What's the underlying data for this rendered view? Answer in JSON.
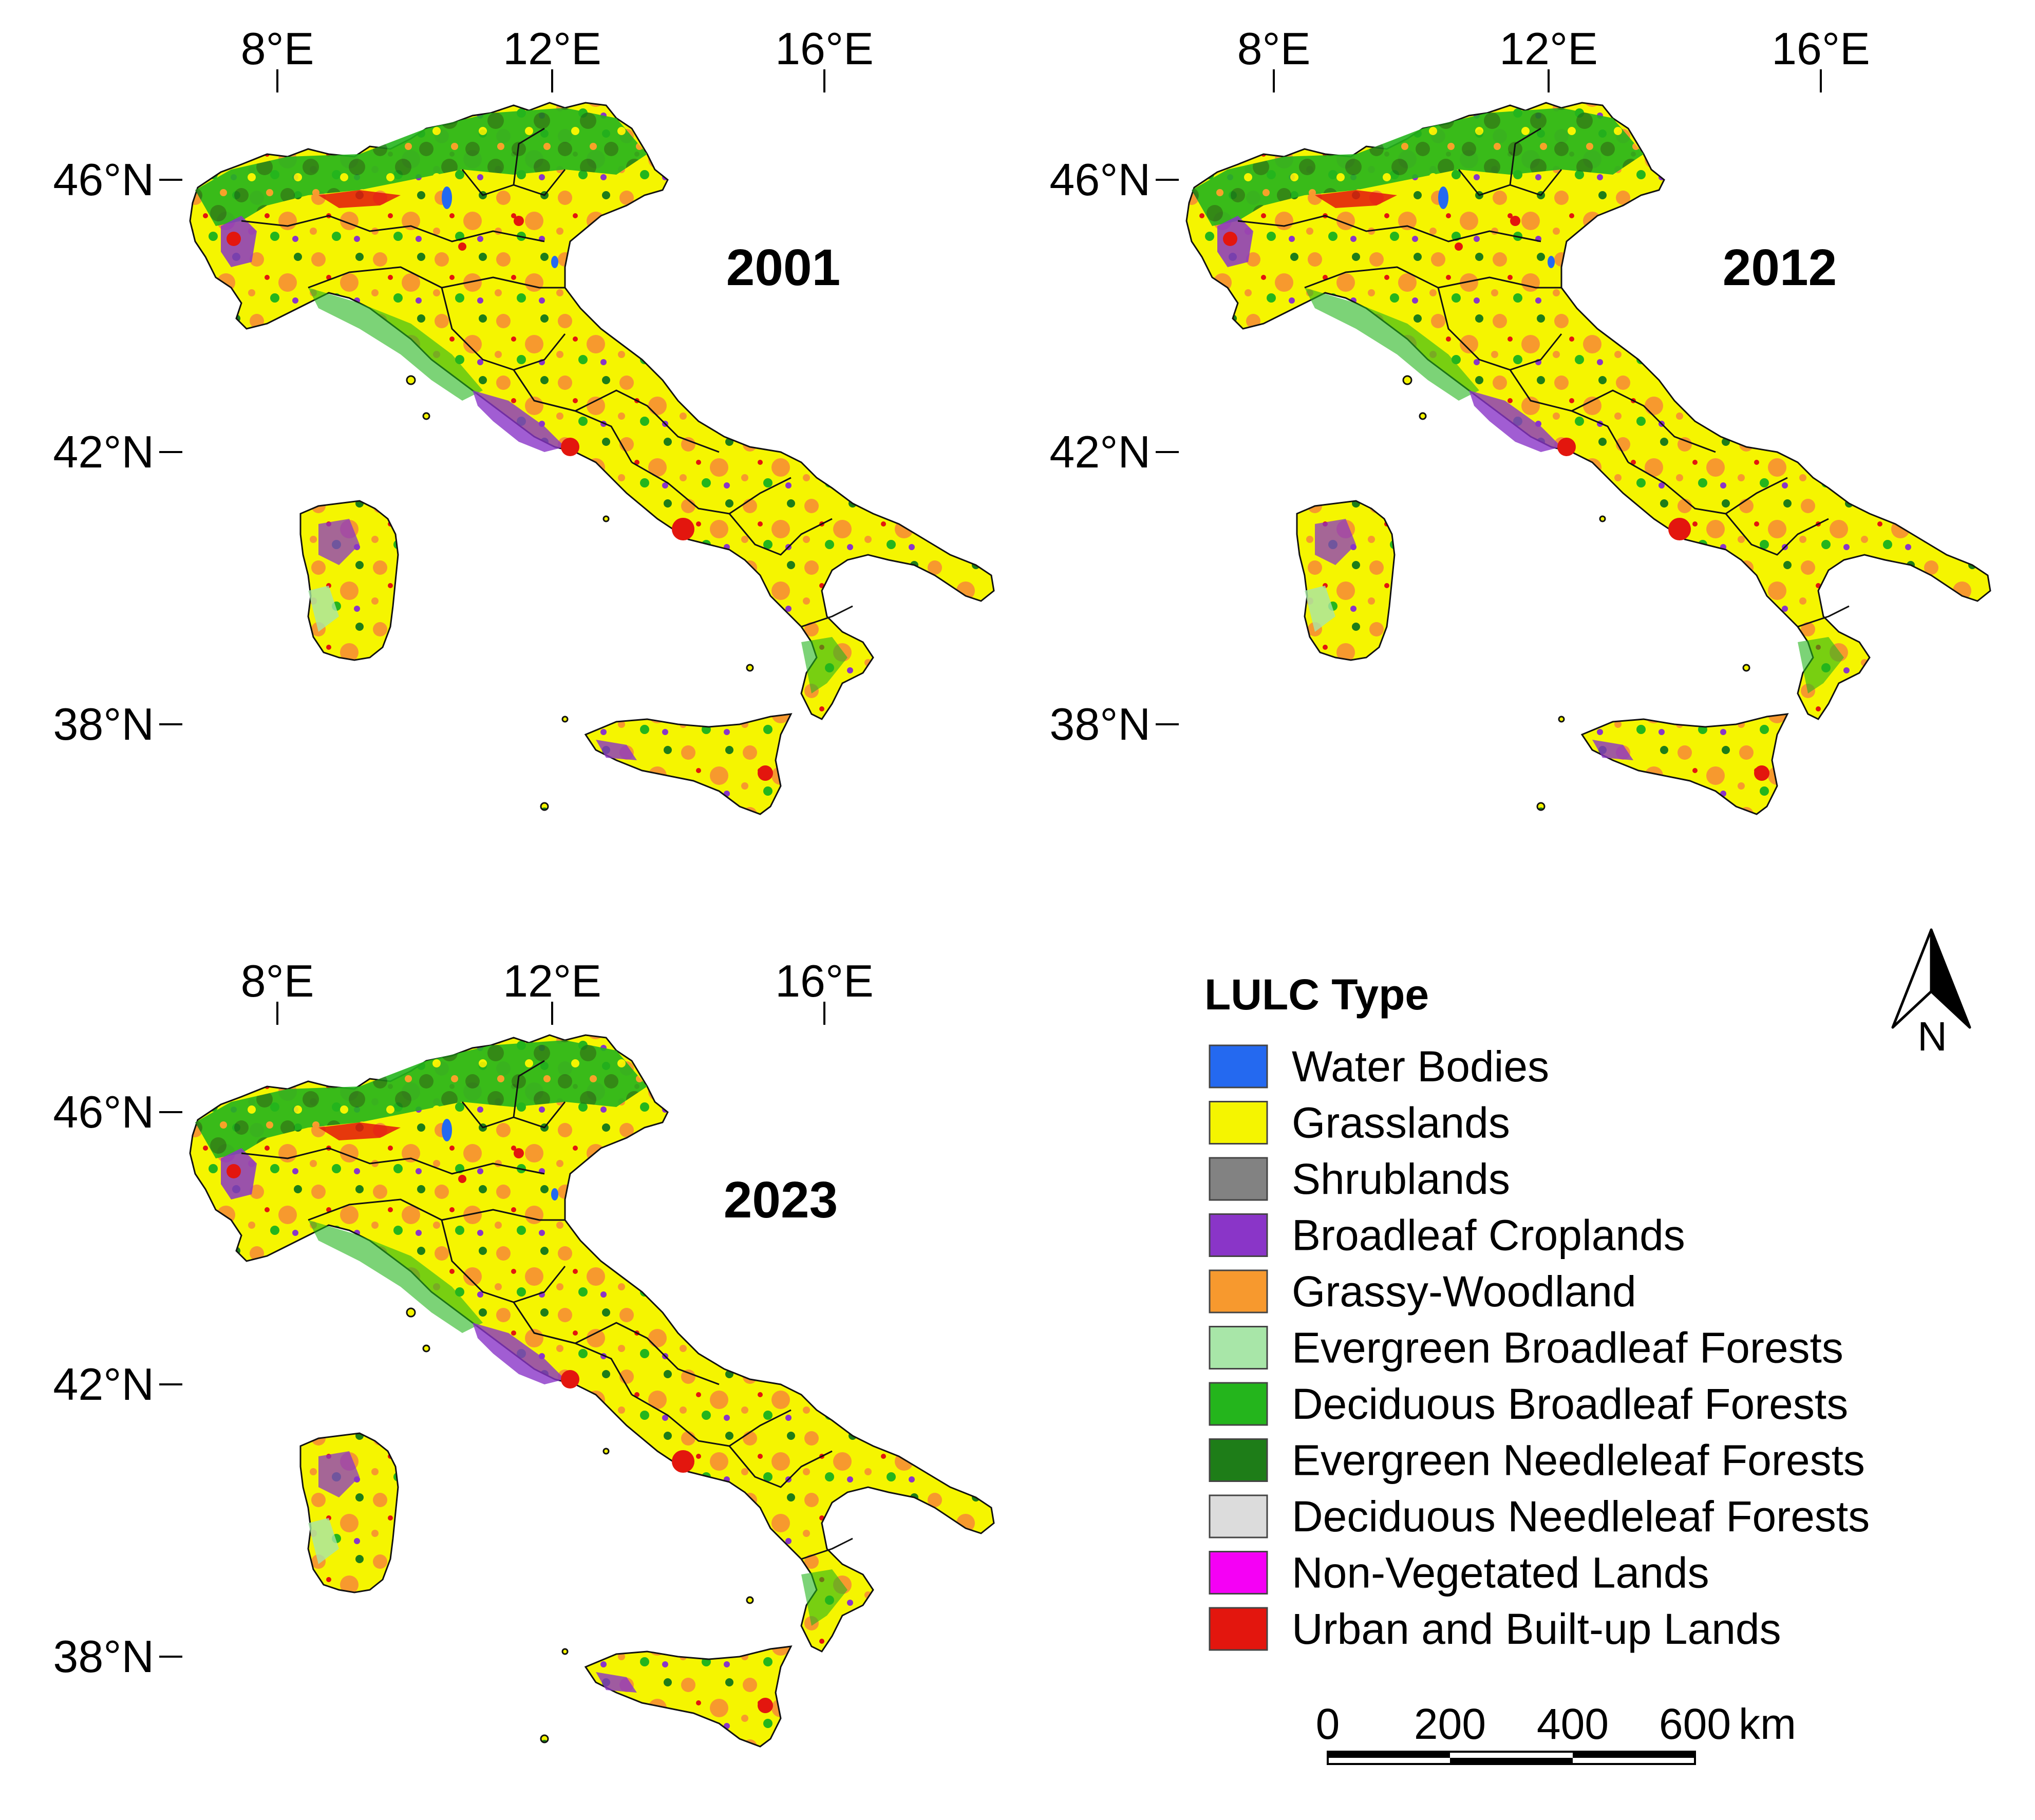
{
  "panels": [
    {
      "year": "2001",
      "lon_labels": [
        "8°E",
        "12°E",
        "16°E"
      ],
      "lat_labels": [
        "46°N",
        "42°N",
        "38°N"
      ]
    },
    {
      "year": "2012",
      "lon_labels": [
        "8°E",
        "12°E",
        "16°E"
      ],
      "lat_labels": [
        "46°N",
        "42°N",
        "38°N"
      ]
    },
    {
      "year": "2023",
      "lon_labels": [
        "8°E",
        "12°E",
        "16°E"
      ],
      "lat_labels": [
        "46°N",
        "42°N",
        "38°N"
      ]
    }
  ],
  "legend": {
    "title": "LULC Type",
    "items": [
      {
        "label": "Water Bodies",
        "color": "#2469f0"
      },
      {
        "label": "Grasslands",
        "color": "#f5f500"
      },
      {
        "label": "Shrublands",
        "color": "#828282"
      },
      {
        "label": "Broadleaf Croplands",
        "color": "#8a35c8"
      },
      {
        "label": "Grassy-Woodland",
        "color": "#f7992e"
      },
      {
        "label": "Evergreen Broadleaf Forests",
        "color": "#a8e6a8"
      },
      {
        "label": "Deciduous Broadleaf Forests",
        "color": "#24b51c"
      },
      {
        "label": "Evergreen Needleleaf Forests",
        "color": "#1e7d18"
      },
      {
        "label": "Deciduous Needleleaf Forests",
        "color": "#dcdcdc"
      },
      {
        "label": "Non-Vegetated Lands",
        "color": "#f500f5"
      },
      {
        "label": "Urban and Built-up Lands",
        "color": "#e3160e"
      }
    ]
  },
  "north_arrow": {
    "label": "N"
  },
  "scale_bar": {
    "ticks": [
      "0",
      "200",
      "400",
      "600"
    ],
    "unit": "km"
  }
}
